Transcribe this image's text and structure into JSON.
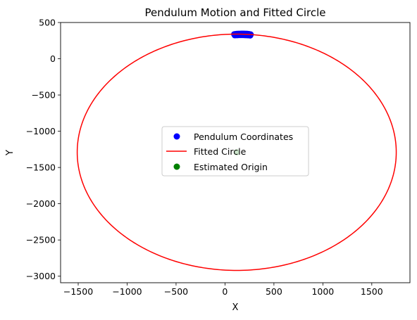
{
  "chart_data": {
    "type": "scatter",
    "title": "Pendulum Motion and Fitted Circle",
    "xlabel": "X",
    "ylabel": "Y",
    "xlim": [
      -1680,
      1890
    ],
    "ylim": [
      -3090,
      500
    ],
    "x_ticks": [
      -1500,
      -1000,
      -500,
      0,
      500,
      1000,
      1500
    ],
    "x_tick_labels": [
      "−1500",
      "−1000",
      "−500",
      "0",
      "500",
      "1000",
      "1500"
    ],
    "y_ticks": [
      500,
      0,
      -500,
      -1000,
      -1500,
      -2000,
      -2500,
      -3000
    ],
    "y_tick_labels": [
      "500",
      "0",
      "−500",
      "−1000",
      "−1500",
      "−2000",
      "−2500",
      "−3000"
    ],
    "grid": false,
    "legend_position": "center",
    "series": [
      {
        "name": "Pendulum Coordinates",
        "kind": "scatter",
        "color": "#0000ff",
        "x": [
          95,
          108,
          120,
          135,
          150,
          165,
          180,
          195,
          210,
          225,
          240,
          252,
          262,
          100,
          115,
          130,
          145,
          160,
          175,
          190,
          205,
          220,
          235,
          248,
          258
        ],
        "y": [
          338,
          340,
          342,
          343,
          344,
          345,
          345,
          345,
          344,
          343,
          341,
          338,
          335,
          325,
          326,
          327,
          328,
          328,
          328,
          328,
          327,
          326,
          325,
          324,
          322
        ]
      },
      {
        "name": "Fitted Circle",
        "kind": "line",
        "color": "#ff0000",
        "center": [
          120,
          -1290
        ],
        "radius": 1630
      },
      {
        "name": "Estimated Origin",
        "kind": "scatter",
        "color": "#008000",
        "x": [
          120
        ],
        "y": [
          -1290
        ]
      }
    ]
  }
}
